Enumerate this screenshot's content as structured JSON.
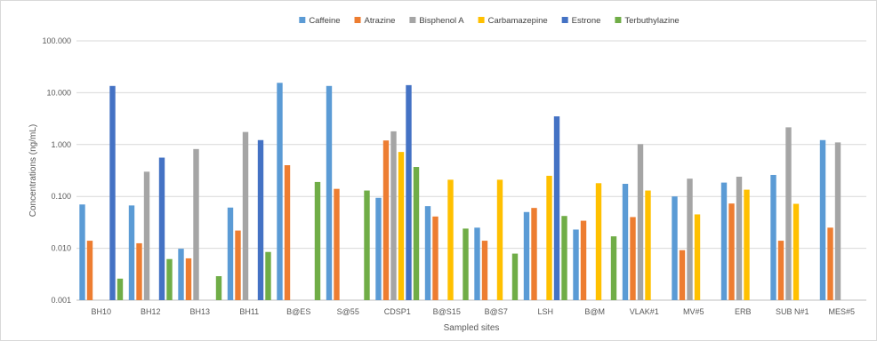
{
  "chart_data": {
    "type": "bar",
    "title": "",
    "xlabel": "Sampled sites",
    "ylabel": "Concentrations (ng/mL)",
    "y_scale": "log",
    "ylim": [
      0.001,
      100
    ],
    "y_ticks": [
      "0.001",
      "0.010",
      "0.100",
      "1.000",
      "10.000",
      "100.000"
    ],
    "grid": "horizontal",
    "legend_position": "top",
    "categories": [
      "BH10",
      "BH12",
      "BH13",
      "BH11",
      "B@ES",
      "S@55",
      "CDSP1",
      "B@S15",
      "B@S7",
      "LSH",
      "B@M",
      "VLAK#1",
      "MV#5",
      "ERB",
      "SUB N#1",
      "MES#5"
    ],
    "series": [
      {
        "name": "Caffeine",
        "color": "#5b9bd5",
        "values": [
          0.07,
          0.067,
          0.0098,
          0.061,
          15.5,
          13.5,
          0.094,
          0.065,
          0.025,
          0.05,
          0.023,
          0.175,
          0.1,
          0.185,
          0.26,
          1.22
        ]
      },
      {
        "name": "Atrazine",
        "color": "#ed7d31",
        "values": [
          0.014,
          0.0125,
          0.0064,
          0.022,
          0.4,
          0.14,
          1.2,
          0.041,
          0.014,
          0.06,
          0.034,
          0.04,
          0.0092,
          0.073,
          0.014,
          0.025
        ]
      },
      {
        "name": "Bisphenol A",
        "color": "#a5a5a5",
        "values": [
          null,
          0.3,
          0.82,
          1.75,
          null,
          null,
          1.8,
          null,
          null,
          null,
          null,
          1.02,
          0.22,
          0.24,
          2.15,
          1.1
        ]
      },
      {
        "name": "Carbamazepine",
        "color": "#ffc000",
        "values": [
          null,
          null,
          null,
          null,
          null,
          null,
          0.72,
          0.21,
          0.21,
          0.25,
          0.18,
          0.13,
          0.045,
          0.135,
          0.072,
          null
        ]
      },
      {
        "name": "Estrone",
        "color": "#4472c4",
        "values": [
          13.5,
          0.56,
          null,
          1.22,
          null,
          null,
          14.0,
          null,
          null,
          3.5,
          null,
          null,
          null,
          null,
          null,
          null
        ]
      },
      {
        "name": "Terbuthylazine",
        "color": "#70ad47",
        "values": [
          0.0026,
          0.0062,
          0.0029,
          0.0085,
          0.19,
          0.13,
          0.37,
          0.024,
          0.0079,
          0.042,
          0.017,
          null,
          null,
          null,
          null,
          null
        ]
      }
    ]
  }
}
